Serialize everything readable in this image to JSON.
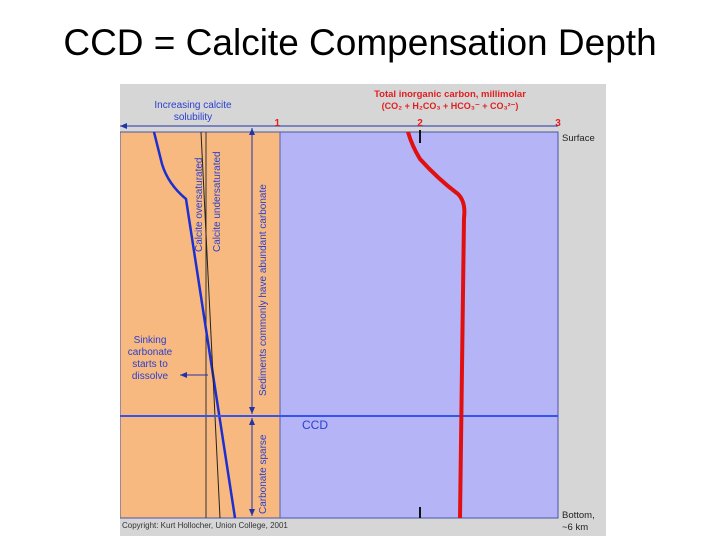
{
  "slide": {
    "title": "CCD = Calcite Compensation Depth"
  },
  "diagram": {
    "x_axis_title_line1": "Total inorganic carbon, millimolar",
    "x_axis_title_line2": "(CO₂ + H₂CO₃ + HCO₃⁻ + CO₃²⁻)",
    "x_ticks": [
      "1",
      "2",
      "3"
    ],
    "left_axis_label_line1": "Increasing calcite",
    "left_axis_label_line2": "solubility",
    "surface_label": "Surface",
    "bottom_label_line1": "Bottom,",
    "bottom_label_line2": "~6 km",
    "vertical_label_oversaturated": "Calcite oversaturated",
    "vertical_label_undersaturated": "Calcite undersaturated",
    "vertical_label_sediments": "Sediments commonly have abundant carbonate",
    "vertical_label_sparse": "Carbonate sparse",
    "sinking_label_line1": "Sinking",
    "sinking_label_line2": "carbonate",
    "sinking_label_line3": "starts to",
    "sinking_label_line4": "dissolve",
    "ccd_label": "CCD",
    "copyright": "Copyright: Kurt Hollocher, Union College, 2001",
    "colors": {
      "left_panel": "#f7b97f",
      "right_panel": "#b4b4f6",
      "figure_bg": "#d6d6d6",
      "blue_curve": "#1c2fd0",
      "red_curve": "#e01010",
      "ccd_line": "#3355ee",
      "title_red": "#e02020",
      "label_blue": "#2a3fd0"
    }
  }
}
